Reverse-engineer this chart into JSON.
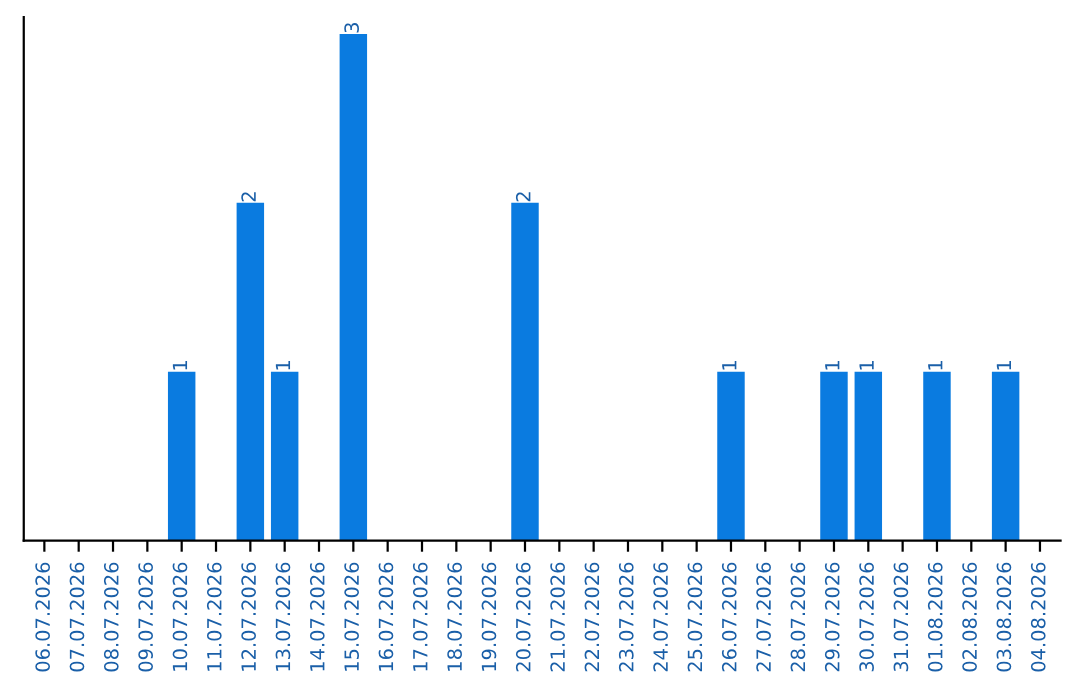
{
  "chart_data": {
    "type": "bar",
    "categories": [
      "06.07.2026",
      "07.07.2026",
      "08.07.2026",
      "09.07.2026",
      "10.07.2026",
      "11.07.2026",
      "12.07.2026",
      "13.07.2026",
      "14.07.2026",
      "15.07.2026",
      "16.07.2026",
      "17.07.2026",
      "18.07.2026",
      "19.07.2026",
      "20.07.2026",
      "21.07.2026",
      "22.07.2026",
      "23.07.2026",
      "24.07.2026",
      "25.07.2026",
      "26.07.2026",
      "27.07.2026",
      "28.07.2026",
      "29.07.2026",
      "30.07.2026",
      "31.07.2026",
      "01.08.2026",
      "02.08.2026",
      "03.08.2026",
      "04.08.2026"
    ],
    "values": [
      0,
      0,
      0,
      0,
      1,
      0,
      2,
      1,
      0,
      3,
      0,
      0,
      0,
      0,
      2,
      0,
      0,
      0,
      0,
      0,
      1,
      0,
      0,
      1,
      1,
      0,
      1,
      0,
      1,
      0
    ],
    "value_labels": [
      null,
      null,
      null,
      null,
      "1",
      null,
      "2",
      "1",
      null,
      "3",
      null,
      null,
      null,
      null,
      "2",
      null,
      null,
      null,
      null,
      null,
      "1",
      null,
      null,
      "1",
      "1",
      null,
      "1",
      null,
      "1",
      null
    ],
    "color": "#0a7be0",
    "ylim": [
      0,
      3.1
    ],
    "tick_labels": "x",
    "grid": false,
    "legend": false
  }
}
